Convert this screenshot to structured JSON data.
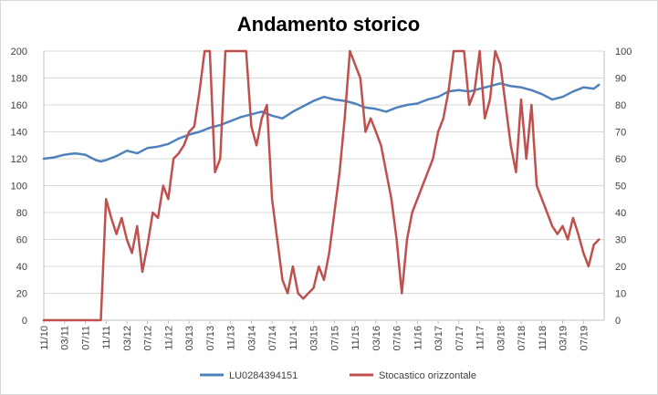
{
  "chart_data": {
    "type": "line",
    "title": "Andamento storico",
    "x_ticks": [
      "11/10",
      "03/11",
      "07/11",
      "11/11",
      "03/12",
      "07/12",
      "11/12",
      "03/13",
      "07/13",
      "11/13",
      "03/14",
      "07/14",
      "11/14",
      "03/15",
      "07/15",
      "11/15",
      "03/16",
      "07/16",
      "11/16",
      "03/17",
      "07/17",
      "11/17",
      "03/18",
      "07/18",
      "11/18",
      "03/19",
      "07/19"
    ],
    "y_left": {
      "min": 0,
      "max": 200,
      "ticks": [
        0,
        20,
        40,
        60,
        80,
        100,
        120,
        140,
        160,
        180,
        200
      ]
    },
    "y_right": {
      "min": 0,
      "max": 100,
      "ticks": [
        0,
        10,
        20,
        30,
        40,
        50,
        60,
        70,
        80,
        90,
        100
      ]
    },
    "grid": "horizontal",
    "legend_position": "bottom",
    "series": [
      {
        "name": "LU0284394151",
        "axis": "left",
        "color": "#4f81bd",
        "x": [
          "11/10",
          "01/11",
          "03/11",
          "05/11",
          "07/11",
          "09/11",
          "10/11",
          "11/11",
          "01/12",
          "03/12",
          "05/12",
          "07/12",
          "09/12",
          "11/12",
          "01/13",
          "03/13",
          "05/13",
          "07/13",
          "09/13",
          "11/13",
          "01/14",
          "03/14",
          "05/14",
          "07/14",
          "09/14",
          "11/14",
          "01/15",
          "03/15",
          "05/15",
          "07/15",
          "09/15",
          "11/15",
          "01/16",
          "03/16",
          "05/16",
          "07/16",
          "09/16",
          "11/16",
          "01/17",
          "03/17",
          "05/17",
          "07/17",
          "09/17",
          "11/17",
          "01/18",
          "03/18",
          "05/18",
          "07/18",
          "09/18",
          "11/18",
          "01/19",
          "03/19",
          "05/19",
          "07/19",
          "09/19",
          "10/19"
        ],
        "values": [
          120,
          121,
          123,
          124,
          123,
          119,
          118,
          119,
          122,
          126,
          124,
          128,
          129,
          131,
          135,
          138,
          140,
          143,
          145,
          148,
          151,
          153,
          155,
          152,
          150,
          155,
          159,
          163,
          166,
          164,
          163,
          161,
          158,
          157,
          155,
          158,
          160,
          161,
          164,
          166,
          170,
          171,
          170,
          172,
          174,
          176,
          174,
          173,
          171,
          168,
          164,
          166,
          170,
          173,
          172,
          175
        ]
      },
      {
        "name": "Stocastico orizzontale",
        "axis": "right",
        "color": "#c0504d",
        "x": [
          "11/10",
          "03/11",
          "07/11",
          "10/11",
          "11/11",
          "12/11",
          "01/12",
          "02/12",
          "03/12",
          "04/12",
          "05/12",
          "06/12",
          "07/12",
          "08/12",
          "09/12",
          "10/12",
          "11/12",
          "12/12",
          "01/13",
          "02/13",
          "03/13",
          "04/13",
          "05/13",
          "06/13",
          "07/13",
          "08/13",
          "09/13",
          "10/13",
          "11/13",
          "12/13",
          "01/14",
          "02/14",
          "03/14",
          "04/14",
          "05/14",
          "06/14",
          "07/14",
          "08/14",
          "09/14",
          "10/14",
          "11/14",
          "12/14",
          "01/15",
          "02/15",
          "03/15",
          "04/15",
          "05/15",
          "06/15",
          "07/15",
          "08/15",
          "09/15",
          "10/15",
          "11/15",
          "12/15",
          "01/16",
          "02/16",
          "03/16",
          "04/16",
          "05/16",
          "06/16",
          "07/16",
          "08/16",
          "09/16",
          "10/16",
          "11/16",
          "12/16",
          "01/17",
          "02/17",
          "03/17",
          "04/17",
          "05/17",
          "06/17",
          "07/17",
          "08/17",
          "09/17",
          "10/17",
          "11/17",
          "12/17",
          "01/18",
          "02/18",
          "03/18",
          "04/18",
          "05/18",
          "06/18",
          "07/18",
          "08/18",
          "09/18",
          "10/18",
          "11/18",
          "12/18",
          "01/19",
          "02/19",
          "03/19",
          "04/19",
          "05/19",
          "06/19",
          "07/19",
          "08/19",
          "09/19",
          "10/19"
        ],
        "values": [
          0,
          0,
          0,
          0,
          45,
          38,
          32,
          38,
          30,
          25,
          35,
          18,
          28,
          40,
          38,
          50,
          45,
          60,
          62,
          65,
          70,
          72,
          85,
          100,
          100,
          55,
          60,
          100,
          100,
          100,
          100,
          100,
          72,
          65,
          75,
          80,
          45,
          30,
          15,
          10,
          20,
          10,
          8,
          10,
          12,
          20,
          15,
          25,
          40,
          55,
          75,
          100,
          95,
          90,
          70,
          75,
          70,
          65,
          55,
          45,
          30,
          10,
          30,
          40,
          45,
          50,
          55,
          60,
          70,
          75,
          85,
          100,
          100,
          100,
          80,
          85,
          100,
          75,
          82,
          100,
          95,
          80,
          65,
          55,
          82,
          60,
          80,
          50,
          45,
          40,
          35,
          32,
          35,
          30,
          38,
          32,
          25,
          20,
          28,
          30
        ]
      }
    ]
  }
}
